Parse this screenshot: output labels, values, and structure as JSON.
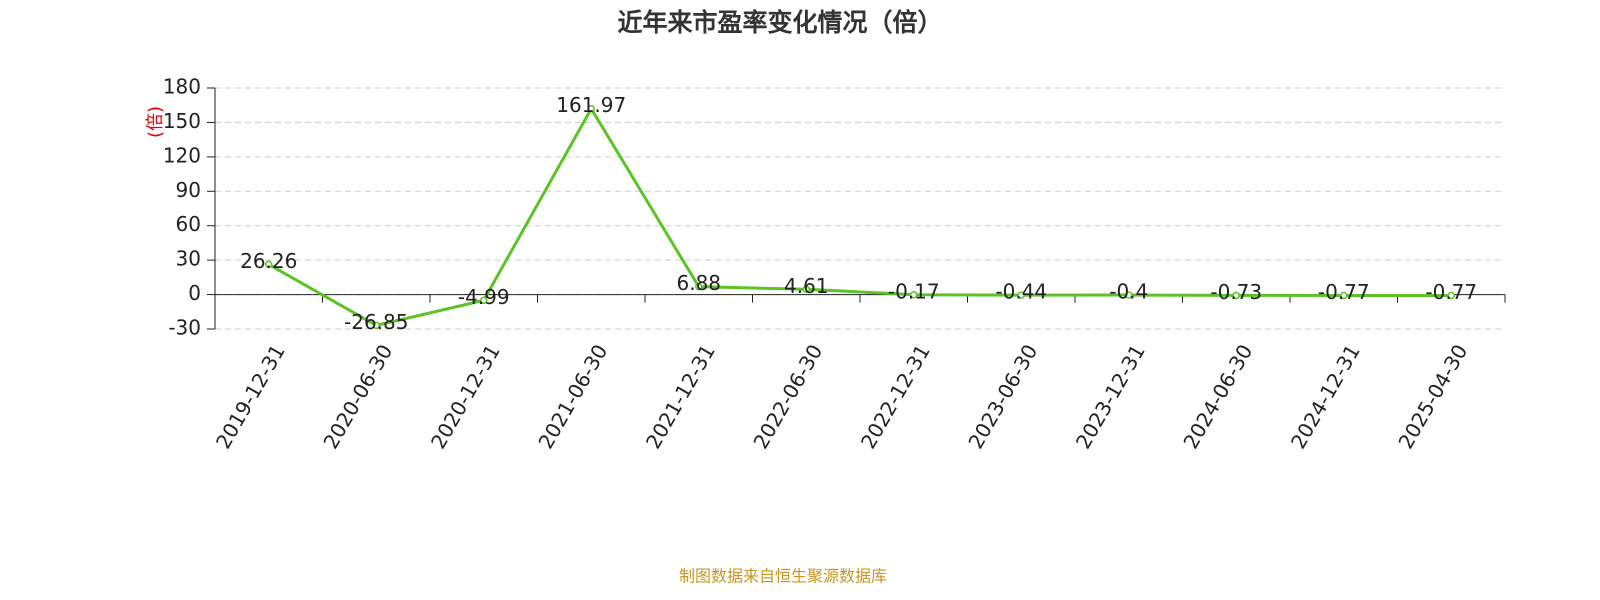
{
  "chart_data": {
    "type": "line",
    "title": "近年来市盈率变化情况（倍）",
    "y_label": "(倍)",
    "source": "制图数据来自恒生聚源数据库",
    "categories": [
      "2019-12-31",
      "2020-06-30",
      "2020-12-31",
      "2021-06-30",
      "2021-12-31",
      "2022-06-30",
      "2022-12-31",
      "2023-06-30",
      "2023-12-31",
      "2024-06-30",
      "2024-12-31",
      "2025-04-30"
    ],
    "series": [
      {
        "name": "市盈率",
        "color": "#5cc226",
        "values": [
          26.26,
          -26.85,
          -4.99,
          161.97,
          6.88,
          4.61,
          -0.17,
          -0.44,
          -0.4,
          -0.73,
          -0.77,
          -0.77
        ]
      }
    ],
    "ylim": [
      -30,
      180
    ],
    "yticks": [
      -30,
      0,
      30,
      60,
      90,
      120,
      150,
      180
    ],
    "grid": true
  }
}
